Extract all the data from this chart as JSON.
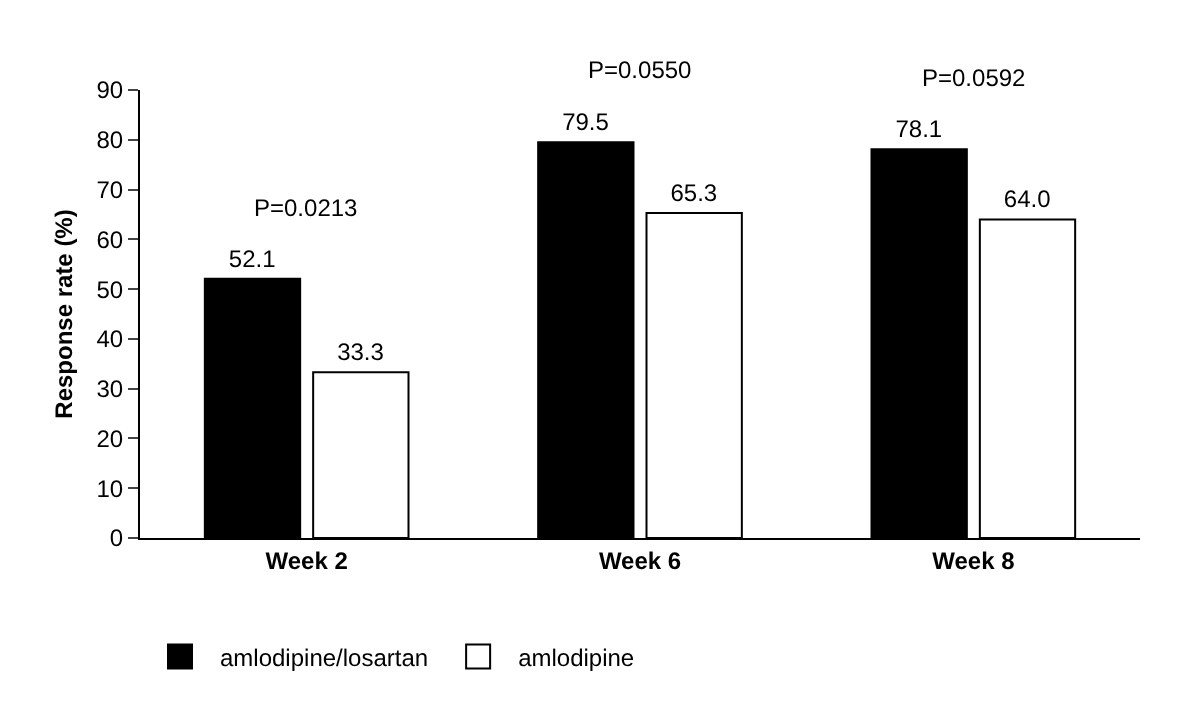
{
  "chart_data": {
    "type": "bar",
    "ylabel": "Response rate (%)",
    "categories": [
      "Week 2",
      "Week 6",
      "Week 8"
    ],
    "series": [
      {
        "name": "amlodipine/losartan",
        "color": "#000000",
        "values": [
          52.1,
          79.5,
          78.1
        ],
        "value_labels": [
          "52.1",
          "79.5",
          "78.1"
        ]
      },
      {
        "name": "amlodipine",
        "color": "#ffffff",
        "values": [
          33.3,
          65.3,
          64.0
        ],
        "value_labels": [
          "33.3",
          "65.3",
          "64.0"
        ]
      }
    ],
    "ylim": [
      0,
      90
    ],
    "yticks": [
      0,
      10,
      20,
      30,
      40,
      50,
      60,
      70,
      80,
      90
    ],
    "grid": false,
    "legend": "bottom left",
    "annotations": [
      "P=0.0213",
      "P=0.0550",
      "P=0.0592"
    ]
  }
}
